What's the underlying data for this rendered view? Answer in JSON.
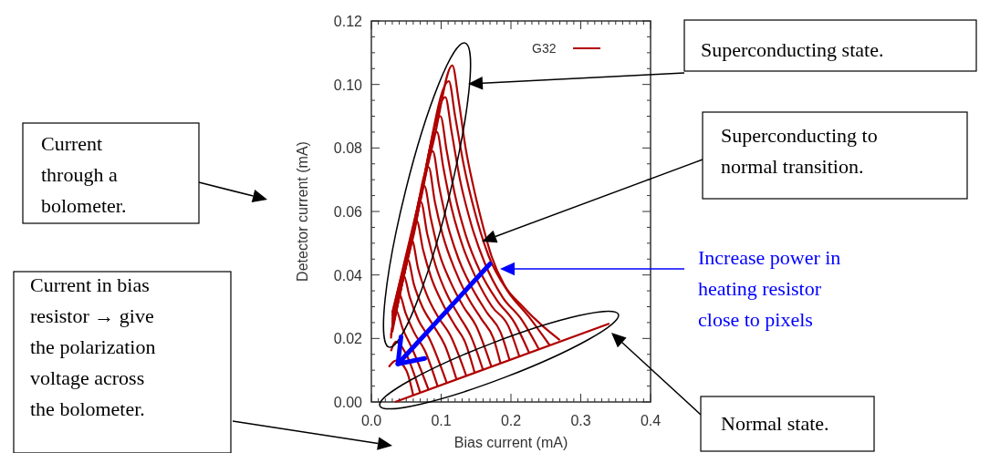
{
  "chart_data": {
    "type": "line",
    "xlabel": "Bias current (mA)",
    "ylabel": "Detector current (mA)",
    "xlim": [
      0,
      0.4
    ],
    "ylim": [
      0,
      0.12
    ],
    "xticks": [
      {
        "value": 0,
        "label": "0.0"
      },
      {
        "value": 0.1,
        "label": "0.1"
      },
      {
        "value": 0.2,
        "label": "0.2"
      },
      {
        "value": 0.3,
        "label": "0.3"
      },
      {
        "value": 0.4,
        "label": "0.4"
      }
    ],
    "yticks": [
      {
        "value": 0,
        "label": "0.00"
      },
      {
        "value": 0.02,
        "label": "0.02"
      },
      {
        "value": 0.04,
        "label": "0.04"
      },
      {
        "value": 0.06,
        "label": "0.06"
      },
      {
        "value": 0.08,
        "label": "0.08"
      },
      {
        "value": 0.1,
        "label": "0.10"
      },
      {
        "value": 0.12,
        "label": "0.12"
      }
    ],
    "legend": "top right",
    "grid": false,
    "annotations": [
      "Superconducting state.",
      "Superconducting to normal transition.",
      "Current through a bolometer.",
      "Current in bias resistor → give the polarization voltage across the bolometer.",
      "Normal state.",
      "Increase power in heating resistor close to pixels"
    ],
    "series": [
      {
        "name": "G32",
        "color": "#b00000",
        "x": [
          0.03,
          0.06,
          0.09,
          0.116,
          0.125,
          0.135,
          0.146,
          0.158,
          0.172,
          0.19,
          0.217,
          0.245,
          0.27
        ],
        "values": [
          0.028,
          0.055,
          0.083,
          0.106,
          0.095,
          0.08,
          0.068,
          0.057,
          0.046,
          0.037,
          0.03,
          0.024,
          0.0195
        ]
      },
      {
        "color": "#b00000",
        "x": [
          0.03,
          0.07,
          0.111,
          0.12,
          0.132,
          0.148,
          0.168,
          0.195,
          0.225,
          0.255
        ],
        "values": [
          0.028,
          0.065,
          0.101,
          0.09,
          0.075,
          0.06,
          0.046,
          0.035,
          0.027,
          0.018
        ]
      },
      {
        "color": "#b00000",
        "x": [
          0.03,
          0.07,
          0.106,
          0.115,
          0.127,
          0.143,
          0.162,
          0.188,
          0.215,
          0.24
        ],
        "values": [
          0.027,
          0.063,
          0.096,
          0.085,
          0.07,
          0.056,
          0.044,
          0.033,
          0.026,
          0.0166
        ]
      },
      {
        "color": "#b00000",
        "x": [
          0.03,
          0.065,
          0.099,
          0.108,
          0.12,
          0.136,
          0.156,
          0.18,
          0.205,
          0.226
        ],
        "values": [
          0.027,
          0.058,
          0.09,
          0.079,
          0.065,
          0.052,
          0.041,
          0.032,
          0.025,
          0.0155
        ]
      },
      {
        "color": "#b00000",
        "x": [
          0.03,
          0.062,
          0.094,
          0.103,
          0.115,
          0.131,
          0.15,
          0.173,
          0.196,
          0.212
        ],
        "values": [
          0.026,
          0.055,
          0.085,
          0.074,
          0.061,
          0.049,
          0.039,
          0.03,
          0.024,
          0.0143
        ]
      },
      {
        "color": "#b00000",
        "x": [
          0.03,
          0.06,
          0.088,
          0.097,
          0.109,
          0.125,
          0.144,
          0.166,
          0.185,
          0.198
        ],
        "values": [
          0.026,
          0.052,
          0.079,
          0.068,
          0.056,
          0.045,
          0.036,
          0.028,
          0.022,
          0.0132
        ]
      },
      {
        "color": "#b00000",
        "x": [
          0.03,
          0.056,
          0.082,
          0.091,
          0.103,
          0.119,
          0.138,
          0.158,
          0.175,
          0.185
        ],
        "values": [
          0.025,
          0.049,
          0.074,
          0.063,
          0.052,
          0.042,
          0.033,
          0.026,
          0.02,
          0.0122
        ]
      },
      {
        "color": "#b00000",
        "x": [
          0.03,
          0.053,
          0.076,
          0.085,
          0.097,
          0.113,
          0.132,
          0.15,
          0.172
        ],
        "values": [
          0.025,
          0.046,
          0.068,
          0.058,
          0.047,
          0.038,
          0.03,
          0.024,
          0.0111
        ]
      },
      {
        "color": "#b00000",
        "x": [
          0.03,
          0.05,
          0.071,
          0.08,
          0.092,
          0.108,
          0.126,
          0.142,
          0.16
        ],
        "values": [
          0.024,
          0.043,
          0.063,
          0.053,
          0.043,
          0.034,
          0.027,
          0.021,
          0.0101
        ]
      },
      {
        "color": "#b00000",
        "x": [
          0.03,
          0.047,
          0.065,
          0.074,
          0.086,
          0.102,
          0.12,
          0.134,
          0.148
        ],
        "values": [
          0.024,
          0.04,
          0.057,
          0.048,
          0.039,
          0.031,
          0.024,
          0.019,
          0.0092
        ]
      },
      {
        "color": "#b00000",
        "x": [
          0.03,
          0.044,
          0.058,
          0.067,
          0.079,
          0.095,
          0.113,
          0.136
        ],
        "values": [
          0.023,
          0.037,
          0.051,
          0.042,
          0.034,
          0.027,
          0.021,
          0.0082
        ]
      },
      {
        "color": "#b00000",
        "x": [
          0.03,
          0.041,
          0.052,
          0.061,
          0.073,
          0.089,
          0.105,
          0.122
        ],
        "values": [
          0.023,
          0.034,
          0.045,
          0.037,
          0.03,
          0.024,
          0.018,
          0.0071
        ]
      },
      {
        "color": "#b00000",
        "x": [
          0.03,
          0.038,
          0.046,
          0.055,
          0.067,
          0.083,
          0.108
        ],
        "values": [
          0.022,
          0.031,
          0.04,
          0.033,
          0.026,
          0.02,
          0.006
        ]
      },
      {
        "color": "#b00000",
        "x": [
          0.028,
          0.034,
          0.04,
          0.049,
          0.061,
          0.077,
          0.095
        ],
        "values": [
          0.021,
          0.028,
          0.034,
          0.028,
          0.022,
          0.016,
          0.0049
        ]
      },
      {
        "color": "#b00000",
        "x": [
          0.028,
          0.035,
          0.045,
          0.058,
          0.082
        ],
        "values": [
          0.02,
          0.029,
          0.023,
          0.017,
          0.0038
        ]
      },
      {
        "color": "#b00000",
        "x": [
          0.028,
          0.035,
          0.05,
          0.07
        ],
        "values": [
          0.016,
          0.019,
          0.015,
          0.0029
        ]
      },
      {
        "color": "#b00000",
        "x": [
          0.025,
          0.035,
          0.05,
          0.06
        ],
        "values": [
          0.011,
          0.013,
          0.01,
          0.0021
        ]
      },
      {
        "color": "#b00000",
        "x": [
          0.034,
          0.341
        ],
        "values": [
          0.0,
          0.0247
        ]
      }
    ]
  }
}
